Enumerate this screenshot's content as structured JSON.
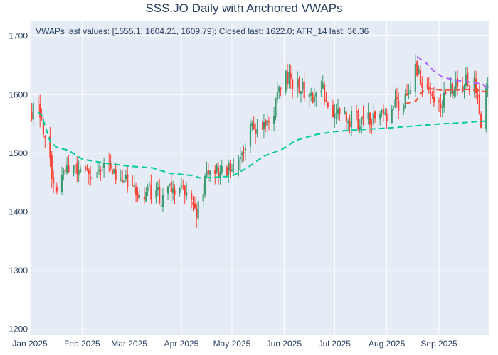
{
  "chart_data": {
    "type": "candlestick",
    "title": "SSS.JO Daily with Anchored VWAPs",
    "annotation": "VWAPs last values: [1555.1, 1604.21, 1609.79]; Closed last: 1622.0; ATR_14 last: 36.36",
    "xlabel": "",
    "ylabel": "",
    "x_range": [
      "2025-01-01",
      "2025-10-01"
    ],
    "ylim": [
      1190,
      1725
    ],
    "y_ticks": [
      1200,
      1300,
      1400,
      1500,
      1600,
      1700
    ],
    "x_ticks": [
      {
        "date": "2025-01-01",
        "label": "Jan 2025"
      },
      {
        "date": "2025-02-01",
        "label": "Feb 2025"
      },
      {
        "date": "2025-03-01",
        "label": "Mar 2025"
      },
      {
        "date": "2025-04-01",
        "label": "Apr 2025"
      },
      {
        "date": "2025-05-01",
        "label": "May 2025"
      },
      {
        "date": "2025-06-01",
        "label": "Jun 2025"
      },
      {
        "date": "2025-07-01",
        "label": "Jul 2025"
      },
      {
        "date": "2025-08-01",
        "label": "Aug 2025"
      },
      {
        "date": "2025-09-01",
        "label": "Sep 2025"
      }
    ],
    "price_anchors": [
      [
        "2025-01-02",
        1570
      ],
      [
        "2025-01-06",
        1580
      ],
      [
        "2025-01-10",
        1525
      ],
      [
        "2025-01-14",
        1470
      ],
      [
        "2025-01-17",
        1450
      ],
      [
        "2025-01-22",
        1485
      ],
      [
        "2025-01-28",
        1470
      ],
      [
        "2025-02-04",
        1460
      ],
      [
        "2025-02-10",
        1480
      ],
      [
        "2025-02-17",
        1475
      ],
      [
        "2025-02-24",
        1460
      ],
      [
        "2025-03-03",
        1440
      ],
      [
        "2025-03-07",
        1420
      ],
      [
        "2025-03-14",
        1430
      ],
      [
        "2025-03-21",
        1425
      ],
      [
        "2025-03-28",
        1440
      ],
      [
        "2025-04-04",
        1445
      ],
      [
        "2025-04-09",
        1395
      ],
      [
        "2025-04-15",
        1455
      ],
      [
        "2025-04-22",
        1470
      ],
      [
        "2025-04-28",
        1465
      ],
      [
        "2025-05-05",
        1490
      ],
      [
        "2025-05-12",
        1540
      ],
      [
        "2025-05-19",
        1555
      ],
      [
        "2025-05-26",
        1575
      ],
      [
        "2025-06-02",
        1630
      ],
      [
        "2025-06-09",
        1620
      ],
      [
        "2025-06-16",
        1590
      ],
      [
        "2025-06-23",
        1615
      ],
      [
        "2025-06-30",
        1570
      ],
      [
        "2025-07-07",
        1560
      ],
      [
        "2025-07-14",
        1555
      ],
      [
        "2025-07-21",
        1555
      ],
      [
        "2025-07-28",
        1560
      ],
      [
        "2025-08-04",
        1575
      ],
      [
        "2025-08-11",
        1590
      ],
      [
        "2025-08-18",
        1640
      ],
      [
        "2025-08-22",
        1620
      ],
      [
        "2025-08-27",
        1600
      ],
      [
        "2025-09-03",
        1590
      ],
      [
        "2025-09-10",
        1610
      ],
      [
        "2025-09-17",
        1625
      ],
      [
        "2025-09-24",
        1610
      ],
      [
        "2025-09-26",
        1555
      ],
      [
        "2025-09-30",
        1622
      ]
    ],
    "series": [
      {
        "type": "vwap",
        "color": "#00cc96",
        "points": [
          [
            "2025-01-06",
            1570
          ],
          [
            "2025-01-08",
            1565
          ],
          [
            "2025-01-13",
            1520
          ],
          [
            "2025-01-17",
            1510
          ],
          [
            "2025-01-24",
            1505
          ],
          [
            "2025-02-01",
            1490
          ],
          [
            "2025-02-15",
            1483
          ],
          [
            "2025-03-01",
            1478
          ],
          [
            "2025-03-15",
            1475
          ],
          [
            "2025-03-25",
            1466
          ],
          [
            "2025-04-08",
            1462
          ],
          [
            "2025-04-12",
            1458
          ],
          [
            "2025-04-20",
            1459
          ],
          [
            "2025-05-01",
            1461
          ],
          [
            "2025-05-10",
            1475
          ],
          [
            "2025-05-20",
            1495
          ],
          [
            "2025-05-31",
            1507
          ],
          [
            "2025-06-08",
            1522
          ],
          [
            "2025-06-20",
            1532
          ],
          [
            "2025-07-01",
            1537
          ],
          [
            "2025-07-15",
            1540
          ],
          [
            "2025-08-01",
            1543
          ],
          [
            "2025-08-15",
            1546
          ],
          [
            "2025-09-01",
            1550
          ],
          [
            "2025-09-15",
            1552
          ],
          [
            "2025-09-23",
            1554
          ],
          [
            "2025-09-30",
            1555.1
          ]
        ]
      },
      {
        "type": "vwap",
        "color": "#ef553b",
        "points": [
          [
            "2025-08-12",
            1585
          ],
          [
            "2025-08-18",
            1588
          ],
          [
            "2025-08-22",
            1605
          ],
          [
            "2025-08-27",
            1610
          ],
          [
            "2025-09-02",
            1608
          ],
          [
            "2025-09-10",
            1608
          ],
          [
            "2025-09-20",
            1609
          ],
          [
            "2025-09-25",
            1607
          ],
          [
            "2025-09-30",
            1604.21
          ]
        ]
      },
      {
        "type": "vwap",
        "color": "#ab63fa",
        "points": [
          [
            "2025-08-19",
            1665
          ],
          [
            "2025-08-24",
            1655
          ],
          [
            "2025-08-29",
            1640
          ],
          [
            "2025-09-03",
            1630
          ],
          [
            "2025-09-10",
            1625
          ],
          [
            "2025-09-20",
            1621
          ],
          [
            "2025-09-27",
            1618
          ],
          [
            "2025-09-30",
            1609.79
          ]
        ]
      }
    ],
    "colors": {
      "increasing": "#3d9970",
      "decreasing": "#ff4136",
      "plot_bg": "#e5ecf6",
      "grid": "#ffffff",
      "text": "#2a3f5f"
    }
  }
}
